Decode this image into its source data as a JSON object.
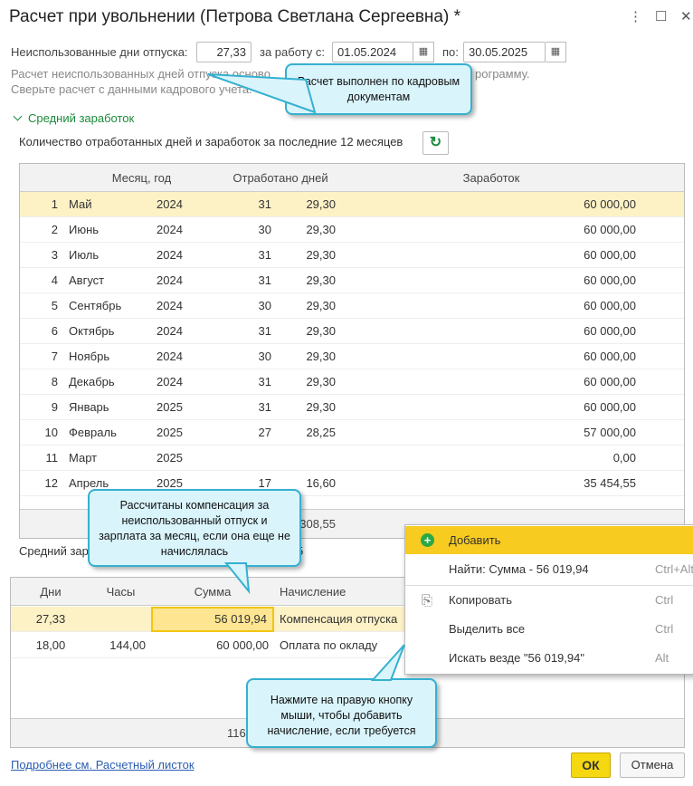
{
  "window": {
    "title": "Расчет при увольнении (Петрова Светлана Сергеевна) *",
    "icons": [
      "more-icon",
      "maximize-icon",
      "close-icon"
    ]
  },
  "form": {
    "unused_days_label": "Неиспользованные дни отпуска:",
    "unused_days": "27,33",
    "from_label": "за работу с:",
    "from": "01.05.2024",
    "to_label": "по:",
    "to": "30.05.2025",
    "note_line1": "Расчет неиспользованных дней отпуска осново",
    "note_line1_end": "рограмму.",
    "note_line2": "Сверьте расчет с данными кадрового учета."
  },
  "section": {
    "title": "Средний заработок",
    "subtitle": "Количество отработанных дней и заработок за последние 12 месяцев"
  },
  "earnings_table": {
    "headers": [
      "Месяц, год",
      "Отработано дней",
      "Заработок"
    ],
    "rows": [
      [
        "1",
        "Май",
        "2024",
        "31",
        "29,30",
        "60 000,00"
      ],
      [
        "2",
        "Июнь",
        "2024",
        "30",
        "29,30",
        "60 000,00"
      ],
      [
        "3",
        "Июль",
        "2024",
        "31",
        "29,30",
        "60 000,00"
      ],
      [
        "4",
        "Август",
        "2024",
        "31",
        "29,30",
        "60 000,00"
      ],
      [
        "5",
        "Сентябрь",
        "2024",
        "30",
        "29,30",
        "60 000,00"
      ],
      [
        "6",
        "Октябрь",
        "2024",
        "31",
        "29,30",
        "60 000,00"
      ],
      [
        "7",
        "Ноябрь",
        "2024",
        "30",
        "29,30",
        "60 000,00"
      ],
      [
        "8",
        "Декабрь",
        "2024",
        "31",
        "29,30",
        "60 000,00"
      ],
      [
        "9",
        "Январь",
        "2025",
        "31",
        "29,30",
        "60 000,00"
      ],
      [
        "10",
        "Февраль",
        "2025",
        "27",
        "28,25",
        "57 000,00"
      ],
      [
        "11",
        "Март",
        "2025",
        "",
        "",
        "0,00"
      ],
      [
        "12",
        "Апрель",
        "2025",
        "17",
        "16,60",
        "35 454,55"
      ]
    ],
    "footer_days": "308,55"
  },
  "avg_label": "Средний зар",
  "avg_label_end": "5",
  "accruals_table": {
    "headers": [
      "Дни",
      "Часы",
      "Сумма",
      "Начисление"
    ],
    "rows": [
      [
        "27,33",
        "",
        "56 019,94",
        "Компенсация отпуска"
      ],
      [
        "18,00",
        "144,00",
        "60 000,00",
        "Оплата по окладу"
      ]
    ],
    "footer_sum": "116 019"
  },
  "context_menu": [
    {
      "label": "Добавить",
      "shortcut": "",
      "icon": "plus-circle-icon"
    },
    {
      "label": "Найти: Сумма - 56 019,94",
      "shortcut": "Ctrl+Alt"
    },
    {
      "label": "Копировать",
      "shortcut": "Ctrl",
      "icon": "copy-icon"
    },
    {
      "label": "Выделить все",
      "shortcut": "Ctrl"
    },
    {
      "label": "Искать везде \"56 019,94\"",
      "shortcut": "Alt"
    }
  ],
  "callouts": [
    "Расчет выполнен по кадровым документам",
    "Рассчитаны компенсация за неиспользованный отпуск и зарплата за месяц, если она еще не начислялась",
    "Нажмите на правую кнопку мыши, чтобы добавить начисление, если требуется"
  ],
  "footer": {
    "link": "Подробнее см. Расчетный листок",
    "ok": "ОК",
    "cancel": "Отмена"
  },
  "colors": {
    "accent_green": "#1b8a3c",
    "selection": "#fdf1c6",
    "menu_highlight": "#f7cb1f",
    "ok_button": "#f5d80f",
    "callout_bg": "#d9f4fb",
    "callout_border": "#35b0d0"
  }
}
